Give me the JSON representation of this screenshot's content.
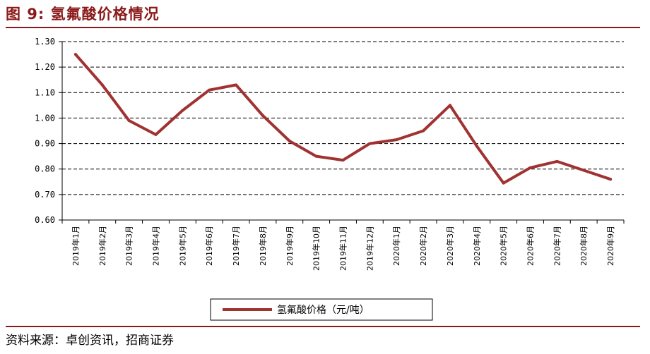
{
  "header": {
    "title": "图 9:  氢氟酸价格情况"
  },
  "footer": {
    "source": "资料来源：卓创资讯，招商证券"
  },
  "colors": {
    "line": "#a03232",
    "accent": "#8b1a1a"
  },
  "chart_data": {
    "type": "line",
    "title": "",
    "xlabel": "",
    "ylabel": "",
    "ylim": [
      0.6,
      1.3
    ],
    "yticks": [
      "0.60",
      "0.70",
      "0.80",
      "0.90",
      "1.00",
      "1.10",
      "1.20",
      "1.30"
    ],
    "grid": true,
    "legend_position": "bottom",
    "categories": [
      "2019年1月",
      "2019年2月",
      "2019年3月",
      "2019年4月",
      "2019年5月",
      "2019年6月",
      "2019年7月",
      "2019年8月",
      "2019年9月",
      "2019年10月",
      "2019年11月",
      "2019年12月",
      "2020年1月",
      "2020年2月",
      "2020年3月",
      "2020年4月",
      "2020年5月",
      "2020年6月",
      "2020年7月",
      "2020年8月",
      "2020年9月"
    ],
    "series": [
      {
        "name": "氢氟酸价格（元/吨）",
        "values": [
          1.25,
          1.13,
          0.99,
          0.935,
          1.03,
          1.11,
          1.13,
          1.01,
          0.91,
          0.85,
          0.835,
          0.9,
          0.915,
          0.95,
          1.05,
          0.89,
          0.745,
          0.805,
          0.83,
          0.795,
          0.76
        ]
      }
    ]
  }
}
